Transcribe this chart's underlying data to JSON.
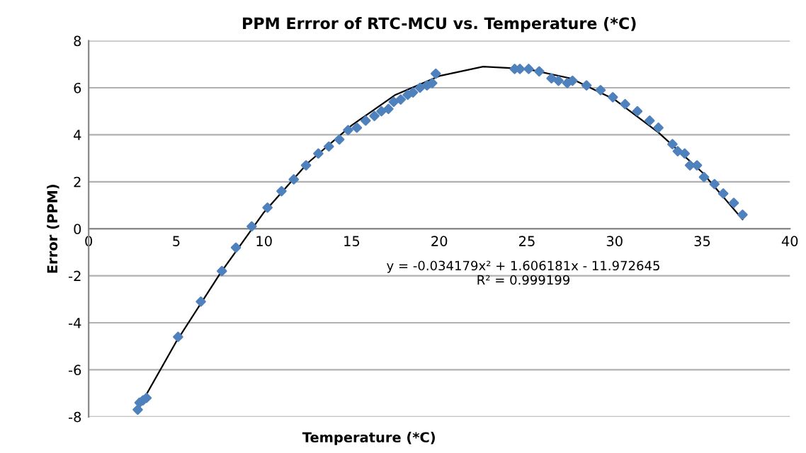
{
  "chart_data": {
    "type": "scatter",
    "title": "PPM Errror of RTC-MCU vs. Temperature (*C)",
    "xlabel": "Temperature (*C)",
    "ylabel": "Error (PPM)",
    "annotations": [
      "y = -0.034179x² + 1.606181x - 11.972645\nR² = 0.999199"
    ],
    "series": [
      {
        "color": "#4f81bd",
        "marker": "diamond",
        "x": [
          2.8,
          2.9,
          3.1,
          3.3,
          5.1,
          6.4,
          7.6,
          8.4,
          9.3,
          10.2,
          11.0,
          11.7,
          12.4,
          13.1,
          13.7,
          14.3,
          14.8,
          15.3,
          15.8,
          16.3,
          16.7,
          17.1,
          17.4,
          17.8,
          18.2,
          18.5,
          18.9,
          19.3,
          19.6,
          19.8,
          24.3,
          24.6,
          25.1,
          25.7,
          26.4,
          26.8,
          27.3,
          27.6,
          28.4,
          29.2,
          29.9,
          30.6,
          31.3,
          32.0,
          32.5,
          33.3,
          33.6,
          34.0,
          34.3,
          34.7,
          35.1,
          35.7,
          36.2,
          36.8,
          37.3
        ],
        "values": [
          -7.7,
          -7.4,
          -7.3,
          -7.2,
          -4.6,
          -3.1,
          -1.8,
          -0.8,
          0.1,
          0.9,
          1.6,
          2.1,
          2.7,
          3.2,
          3.5,
          3.8,
          4.2,
          4.3,
          4.6,
          4.8,
          5.0,
          5.1,
          5.4,
          5.5,
          5.7,
          5.8,
          6.0,
          6.1,
          6.2,
          6.6,
          6.8,
          6.8,
          6.8,
          6.7,
          6.4,
          6.3,
          6.2,
          6.3,
          6.1,
          5.9,
          5.6,
          5.3,
          5.0,
          4.6,
          4.3,
          3.6,
          3.3,
          3.2,
          2.7,
          2.7,
          2.2,
          1.9,
          1.5,
          1.1,
          0.6
        ]
      },
      {
        "type": "line",
        "color": "#000000",
        "marker": "none",
        "line_style": "solid",
        "x": [
          2.8,
          5,
          7.5,
          10,
          12.5,
          15,
          17.5,
          20,
          22.5,
          25,
          27.5,
          30,
          32.5,
          35,
          37.3
        ],
        "values": [
          -7.7,
          -4.8,
          -1.9,
          0.7,
          2.8,
          4.4,
          5.7,
          6.5,
          6.9,
          6.8,
          6.4,
          5.5,
          4.1,
          2.4,
          0.4
        ]
      }
    ],
    "xlim": [
      0,
      40
    ],
    "xticks": [
      0,
      5,
      10,
      15,
      20,
      25,
      30,
      35,
      40
    ],
    "ylim": [
      -8,
      8
    ],
    "yticks": [
      -8,
      -6,
      -4,
      -2,
      0,
      2,
      4,
      6,
      8
    ],
    "grid": "y"
  }
}
